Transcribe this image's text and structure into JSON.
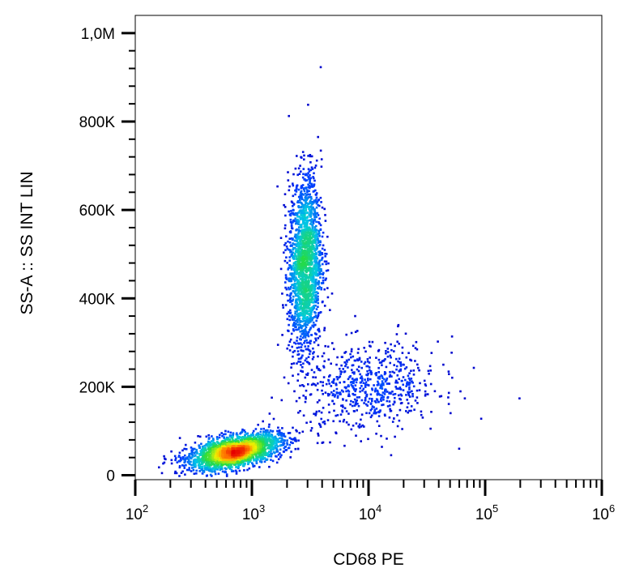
{
  "chart_data": {
    "type": "scatter",
    "style": "density-colored dot plot (blue = low, green/yellow = medium, red = high)",
    "xlabel": "CD68 PE",
    "ylabel": "SS-A :: SS INT LIN",
    "x_scale": "log",
    "xlim": [
      100,
      1000000
    ],
    "ylim": [
      -10000,
      1040000
    ],
    "x_ticks": [
      {
        "base": "10",
        "exp": "2",
        "value": 100
      },
      {
        "base": "10",
        "exp": "3",
        "value": 1000
      },
      {
        "base": "10",
        "exp": "4",
        "value": 10000
      },
      {
        "base": "10",
        "exp": "5",
        "value": 100000
      },
      {
        "base": "10",
        "exp": "6",
        "value": 1000000
      }
    ],
    "y_ticks": [
      {
        "label": "0",
        "value": 0
      },
      {
        "label": "200K",
        "value": 200000
      },
      {
        "label": "400K",
        "value": 400000
      },
      {
        "label": "600K",
        "value": 600000
      },
      {
        "label": "800K",
        "value": 800000
      },
      {
        "label": "1,0M",
        "value": 1000000
      }
    ],
    "populations": [
      {
        "center_x": 700,
        "center_y": 55000,
        "spread_log_x": 0.2,
        "spread_y": 20000,
        "tilt": 0.5,
        "count": 2400
      },
      {
        "center_x": 2800,
        "center_y": 480000,
        "spread_log_x": 0.07,
        "spread_y": 100000,
        "tilt": 0.1,
        "count": 2000
      },
      {
        "center_x": 10000,
        "center_y": 200000,
        "spread_log_x": 0.3,
        "spread_y": 50000,
        "tilt": 0.1,
        "count": 650
      }
    ],
    "grid": false,
    "legend": "none"
  }
}
